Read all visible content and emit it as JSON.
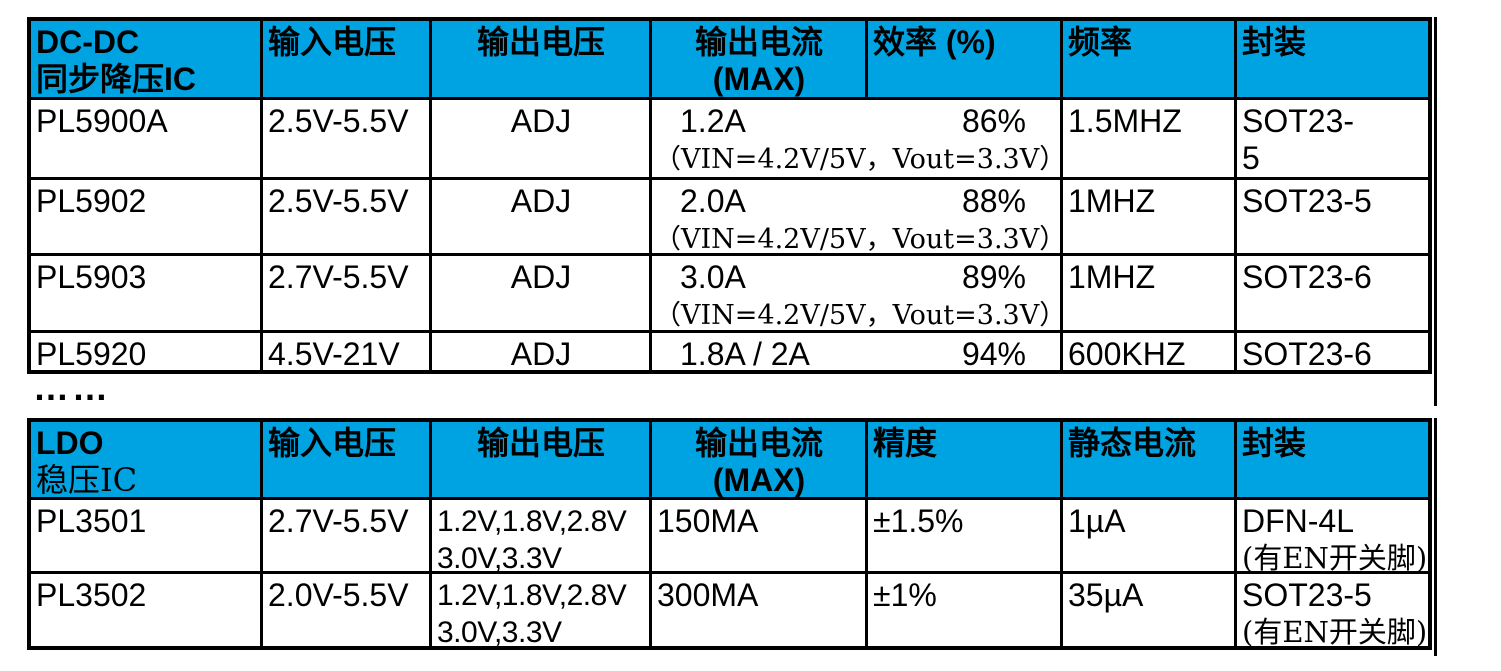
{
  "colors": {
    "header_bg": "#00A3E2",
    "border": "#000000"
  },
  "separator": "……",
  "dcdc_table": {
    "title_latin": "DC-DC",
    "title_cjk": "同步降压IC",
    "headers": {
      "vin": "输入电压",
      "vout": "输出电压",
      "iout": "输出电流\n(MAX)",
      "eff": "效率 (%)",
      "freq": "频率",
      "pkg": "封装"
    },
    "rows": [
      {
        "model": "PL5900A",
        "vin": "2.5V-5.5V",
        "vout": "ADJ",
        "iout": "1.2A",
        "eff": "86%",
        "cond": "（VIN=4.2V/5V，Vout=3.3V）",
        "freq": "1.5MHZ",
        "pkg": "SOT23-\n5"
      },
      {
        "model": "PL5902",
        "vin": "2.5V-5.5V",
        "vout": "ADJ",
        "iout": "2.0A",
        "eff": "88%",
        "cond": "（VIN=4.2V/5V，Vout=3.3V）",
        "freq": "1MHZ",
        "pkg": "SOT23-5"
      },
      {
        "model": "PL5903",
        "vin": "2.7V-5.5V",
        "vout": "ADJ",
        "iout": "3.0A",
        "eff": "89%",
        "cond": "（VIN=4.2V/5V，Vout=3.3V）",
        "freq": "1MHZ",
        "pkg": "SOT23-6"
      },
      {
        "model": "PL5920",
        "vin": "4.5V-21V",
        "vout": "ADJ",
        "iout": "1.8A / 2A",
        "eff": "94%",
        "cond": "",
        "freq": "600KHZ",
        "pkg": "SOT23-6"
      }
    ]
  },
  "ldo_table": {
    "title_latin": "LDO",
    "title_cjk": "稳压IC",
    "headers": {
      "vin": "输入电压",
      "vout": "输出电压",
      "iout": "输出电流\n(MAX)",
      "acc": "精度",
      "iq": "静态电流",
      "pkg": "封装"
    },
    "rows": [
      {
        "model": "PL3501",
        "vin": "2.7V-5.5V",
        "vout": "1.2V,1.8V,2.8V\n3.0V,3.3V",
        "iout": "150MA",
        "acc": "±1.5%",
        "iq": "1µA",
        "pkg": "DFN-4L",
        "pkg_note": "(有EN开关脚)"
      },
      {
        "model": "PL3502",
        "vin": "2.0V-5.5V",
        "vout": "1.2V,1.8V,2.8V\n3.0V,3.3V",
        "iout": "300MA",
        "acc": "±1%",
        "iq": "35µA",
        "pkg": "SOT23-5",
        "pkg_note": "(有EN开关脚)"
      }
    ]
  }
}
